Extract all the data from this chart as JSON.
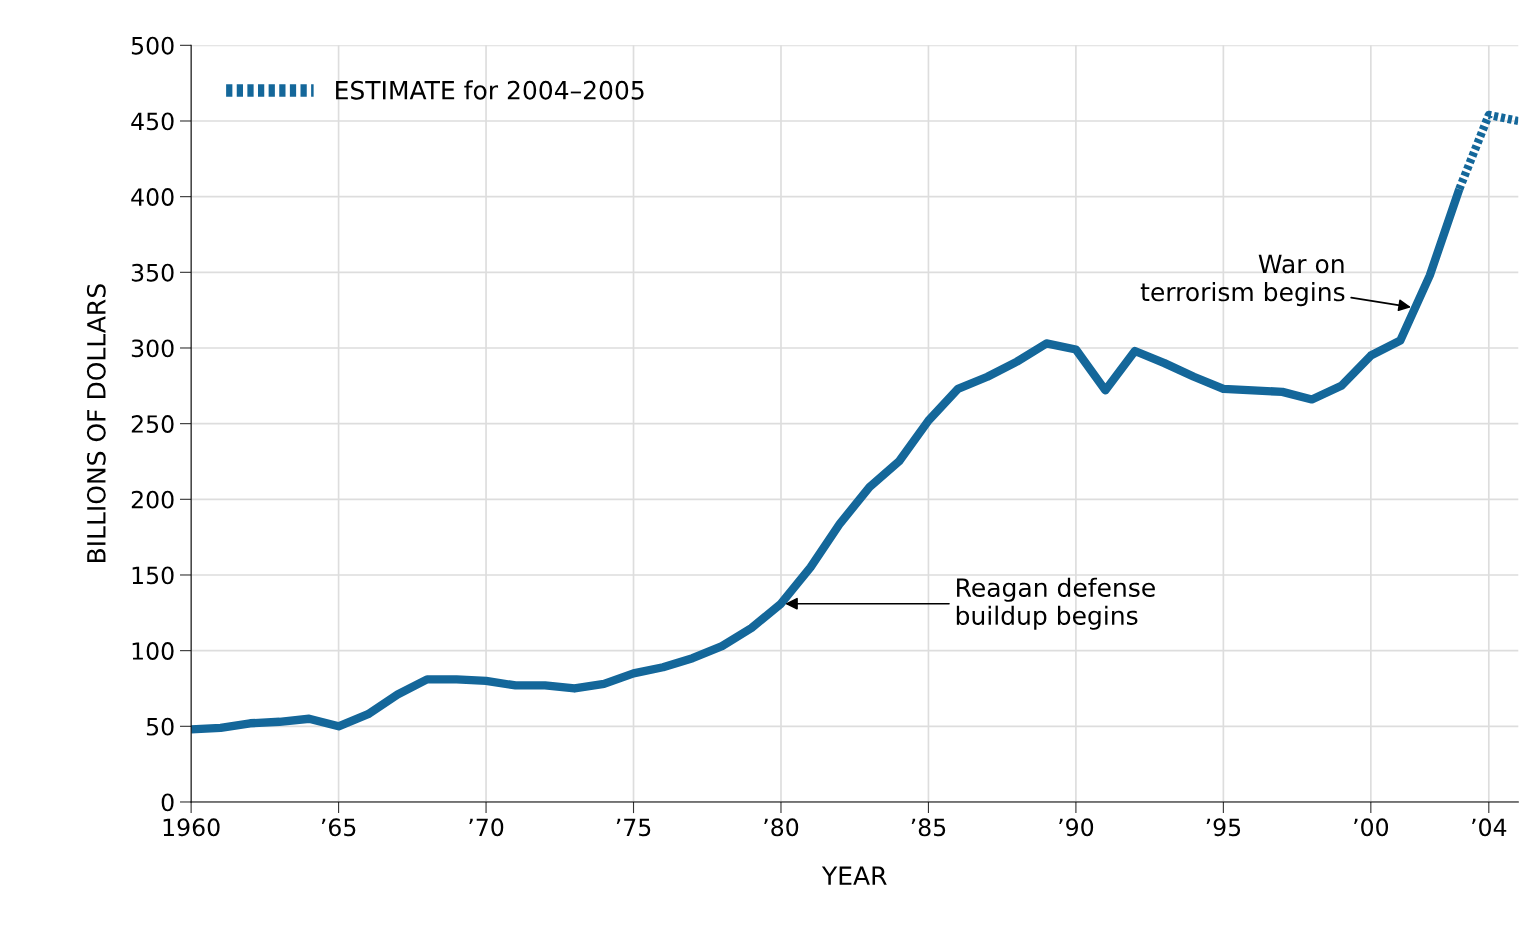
{
  "chart_data": {
    "type": "line",
    "xlabel": "YEAR",
    "ylabel": "BILLIONS OF DOLLARS",
    "xlim": [
      1960,
      2005
    ],
    "ylim": [
      0,
      500
    ],
    "xticks": [
      {
        "value": 1960,
        "label": "1960"
      },
      {
        "value": 1965,
        "label": "’65"
      },
      {
        "value": 1970,
        "label": "’70"
      },
      {
        "value": 1975,
        "label": "’75"
      },
      {
        "value": 1980,
        "label": "’80"
      },
      {
        "value": 1985,
        "label": "’85"
      },
      {
        "value": 1990,
        "label": "’90"
      },
      {
        "value": 1995,
        "label": "’95"
      },
      {
        "value": 2000,
        "label": "’00"
      },
      {
        "value": 2004,
        "label": "’04"
      }
    ],
    "yticks": [
      0,
      50,
      100,
      150,
      200,
      250,
      300,
      350,
      400,
      450,
      500
    ],
    "grid": true,
    "legend": "top left",
    "marker": "none",
    "series": [
      {
        "color": "#14679a",
        "line_style": "solid",
        "x": [
          1960,
          1961,
          1962,
          1963,
          1964,
          1965,
          1966,
          1967,
          1968,
          1969,
          1970,
          1971,
          1972,
          1973,
          1974,
          1975,
          1976,
          1977,
          1978,
          1979,
          1980,
          1981,
          1982,
          1983,
          1984,
          1985,
          1986,
          1987,
          1988,
          1989,
          1990,
          1991,
          1992,
          1993,
          1994,
          1995,
          1996,
          1997,
          1998,
          1999,
          2000,
          2001,
          2002,
          2003
        ],
        "values": [
          48,
          49,
          52,
          53,
          55,
          50,
          58,
          71,
          81,
          81,
          80,
          77,
          77,
          75,
          78,
          85,
          89,
          95,
          103,
          115,
          131,
          155,
          184,
          208,
          225,
          252,
          273,
          281,
          291,
          303,
          299,
          272,
          298,
          290,
          281,
          273,
          272,
          271,
          266,
          275,
          295,
          305,
          348,
          405
        ]
      },
      {
        "name": "ESTIMATE for 2004–2005",
        "color": "#14679a",
        "line_style": "dotted",
        "x": [
          2003,
          2004,
          2005
        ],
        "values": [
          405,
          454,
          450
        ]
      }
    ],
    "annotations": [
      {
        "text": "Reagan defense\nbuildup begins",
        "x": 1980,
        "y": 131
      },
      {
        "text": "War on\nterrorism begins",
        "x": 2001.5,
        "y": 326.5
      }
    ]
  }
}
